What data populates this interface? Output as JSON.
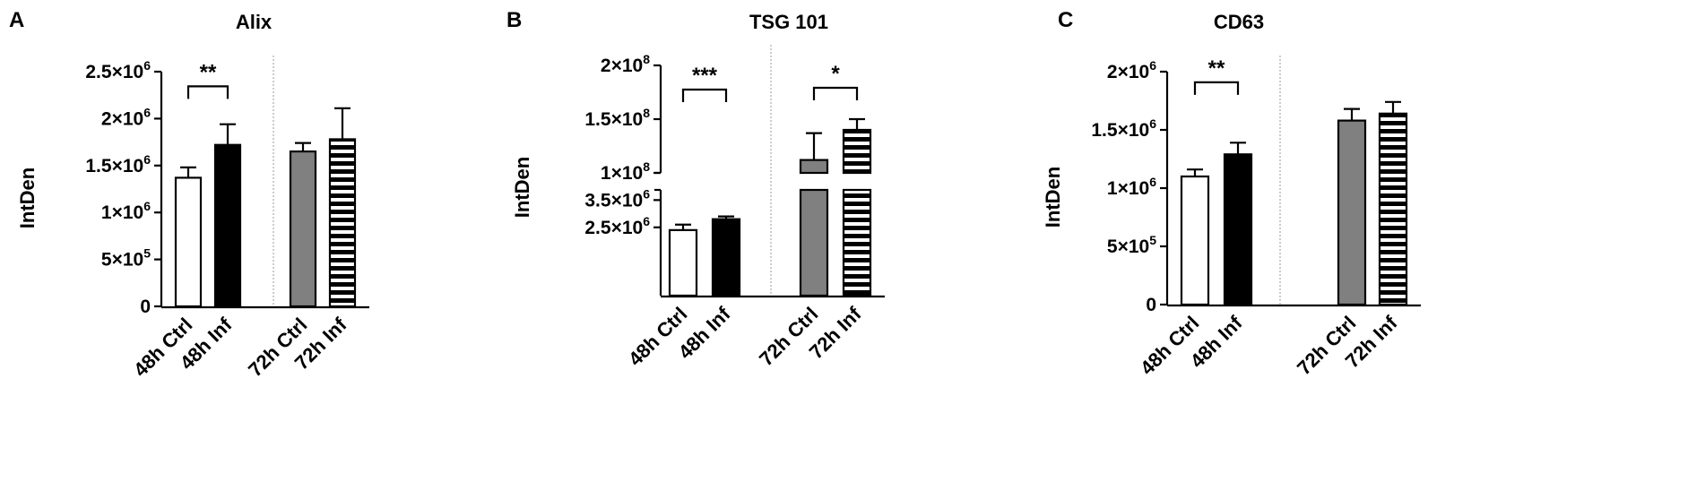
{
  "chart_data": [
    {
      "panel_letter": "A",
      "type": "bar",
      "title": "Alix",
      "ylabel": "IntDen",
      "ylim": [
        0,
        2500000
      ],
      "y_ticks": [
        {
          "value": 0,
          "base": "0",
          "exp": ""
        },
        {
          "value": 500000,
          "base": "5×10",
          "exp": "5"
        },
        {
          "value": 1000000,
          "base": "1×10",
          "exp": "6"
        },
        {
          "value": 1500000,
          "base": "1.5×10",
          "exp": "6"
        },
        {
          "value": 2000000,
          "base": "2×10",
          "exp": "6"
        },
        {
          "value": 2500000,
          "base": "2.5×10",
          "exp": "6"
        }
      ],
      "categories": [
        "48h Ctrl",
        "48h Inf",
        "72h Ctrl",
        "72h Inf"
      ],
      "values": [
        1370000,
        1720000,
        1650000,
        1780000
      ],
      "errors": [
        110000,
        220000,
        90000,
        330000
      ],
      "fills": [
        "white",
        "black",
        "gray",
        "stripes"
      ],
      "significance": [
        {
          "from": 0,
          "to": 1,
          "label": "**",
          "y": 2420000
        }
      ]
    },
    {
      "panel_letter": "B",
      "type": "bar",
      "title": "TSG 101",
      "ylabel": "IntDen",
      "broken_axis": true,
      "segments": [
        {
          "range": [
            0,
            4200000
          ]
        },
        {
          "range": [
            100000000,
            200000000
          ]
        }
      ],
      "y_ticks": [
        {
          "value": 2500000,
          "base": "2.5×10",
          "exp": "6"
        },
        {
          "value": 3500000,
          "base": "3.5×10",
          "exp": "6"
        },
        {
          "value": 100000000,
          "base": "1×10",
          "exp": "8"
        },
        {
          "value": 150000000,
          "base": "1.5×10",
          "exp": "8"
        },
        {
          "value": 200000000,
          "base": "2×10",
          "exp": "8"
        }
      ],
      "categories": [
        "48h Ctrl",
        "48h Inf",
        "72h Ctrl",
        "72h Inf"
      ],
      "values": [
        2400000,
        2800000,
        112000000,
        140000000
      ],
      "errors": [
        200000,
        100000,
        25000000,
        10000000
      ],
      "fills": [
        "white",
        "black",
        "gray",
        "stripes"
      ],
      "significance": [
        {
          "from": 0,
          "to": 1,
          "label": "***",
          "y": 180000000
        },
        {
          "from": 2,
          "to": 3,
          "label": "*",
          "y": 180000000
        }
      ]
    },
    {
      "panel_letter": "C",
      "type": "bar",
      "title": "CD63",
      "ylabel": "IntDen",
      "ylim": [
        0,
        2000000
      ],
      "y_ticks": [
        {
          "value": 0,
          "base": "0",
          "exp": ""
        },
        {
          "value": 500000,
          "base": "5×10",
          "exp": "5"
        },
        {
          "value": 1000000,
          "base": "1×10",
          "exp": "6"
        },
        {
          "value": 1500000,
          "base": "1.5×10",
          "exp": "6"
        },
        {
          "value": 2000000,
          "base": "2×10",
          "exp": "6"
        }
      ],
      "categories": [
        "48h Ctrl",
        "48h Inf",
        "72h Ctrl",
        "72h Inf"
      ],
      "values": [
        1100000,
        1290000,
        1580000,
        1640000
      ],
      "errors": [
        60000,
        100000,
        100000,
        100000
      ],
      "fills": [
        "white",
        "black",
        "gray",
        "stripes"
      ],
      "significance": [
        {
          "from": 0,
          "to": 1,
          "label": "**",
          "y": 1970000
        }
      ]
    }
  ]
}
